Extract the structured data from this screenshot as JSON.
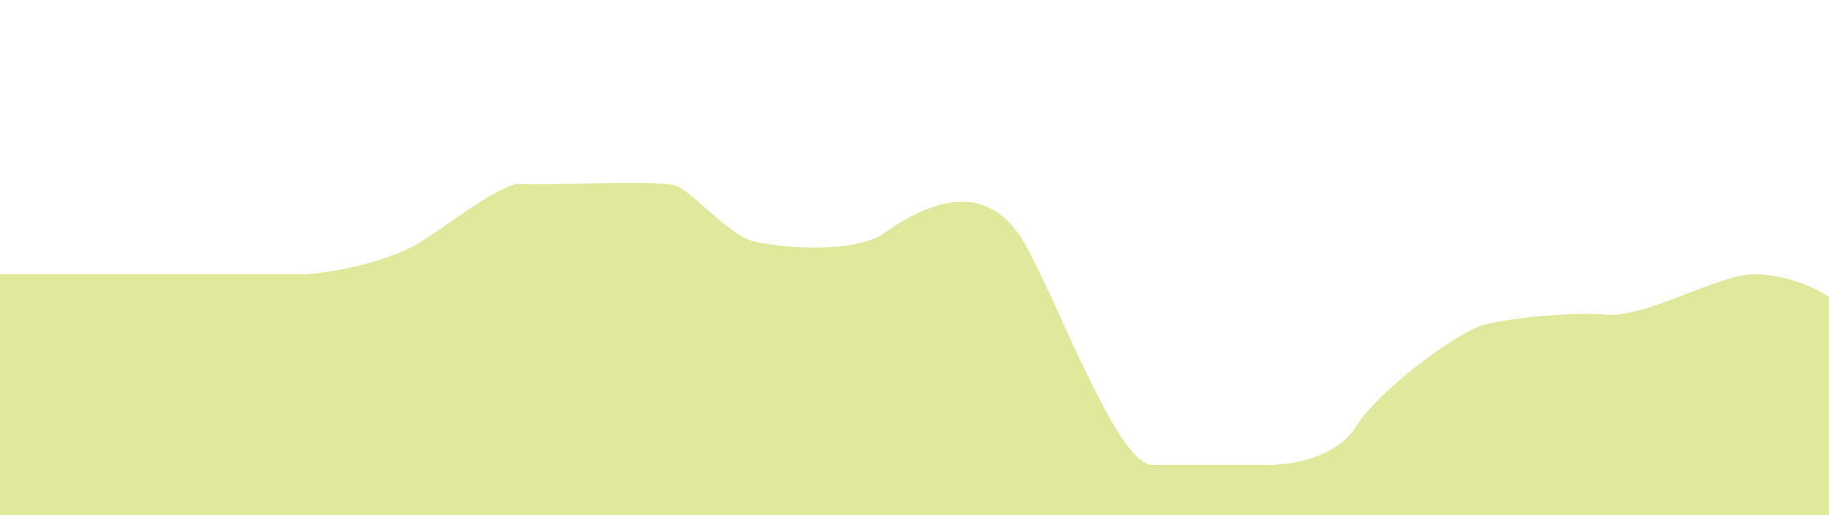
{
  "wave": {
    "fill_color": "#e0e89b",
    "background_color": "#ffffff"
  }
}
